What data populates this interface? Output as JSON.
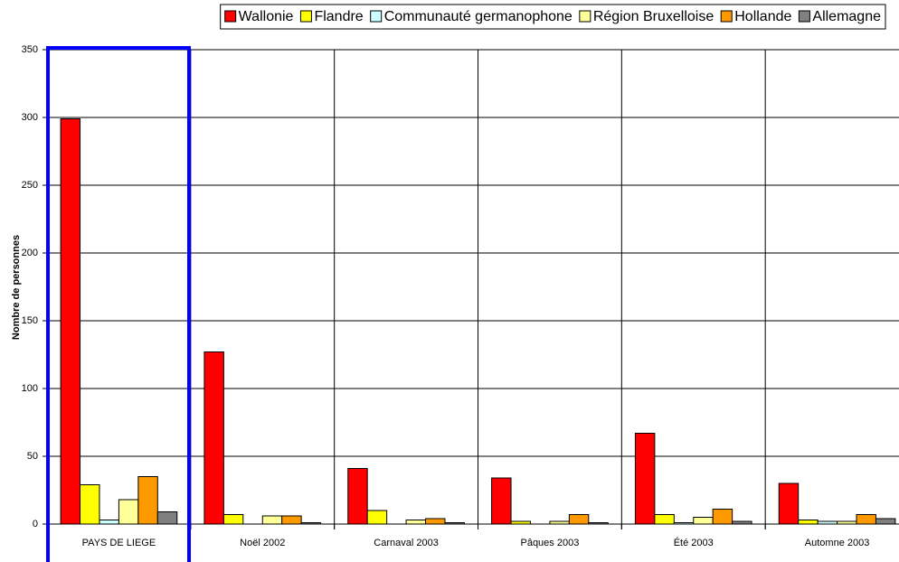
{
  "chart_data": {
    "type": "bar",
    "y_label": "Nombre de personnes",
    "categories": [
      "PAYS DE LIEGE",
      "Noël 2002",
      "Carnaval 2003",
      "Pâques 2003",
      "Été 2003",
      "Automne 2003"
    ],
    "series": [
      {
        "name": "Wallonie",
        "color": "#ff0000",
        "values": [
          299,
          127,
          41,
          34,
          67,
          30
        ]
      },
      {
        "name": "Flandre",
        "color": "#ffff00",
        "values": [
          29,
          7,
          10,
          2,
          7,
          3
        ]
      },
      {
        "name": "Communauté germanophone",
        "color": "#ccffff",
        "values": [
          3,
          0,
          0,
          0,
          1,
          2
        ]
      },
      {
        "name": "Région Bruxelloise",
        "color": "#ffff99",
        "values": [
          18,
          6,
          3,
          2,
          5,
          2
        ]
      },
      {
        "name": "Hollande",
        "color": "#ff9900",
        "values": [
          35,
          6,
          4,
          7,
          11,
          7
        ]
      },
      {
        "name": "Allemagne",
        "color": "#808080",
        "values": [
          9,
          1,
          1,
          1,
          2,
          4
        ]
      }
    ],
    "ylim": [
      0,
      350
    ],
    "yticks": [
      0,
      50,
      100,
      150,
      200,
      250,
      300,
      350
    ],
    "grid": true,
    "legend": "top"
  }
}
